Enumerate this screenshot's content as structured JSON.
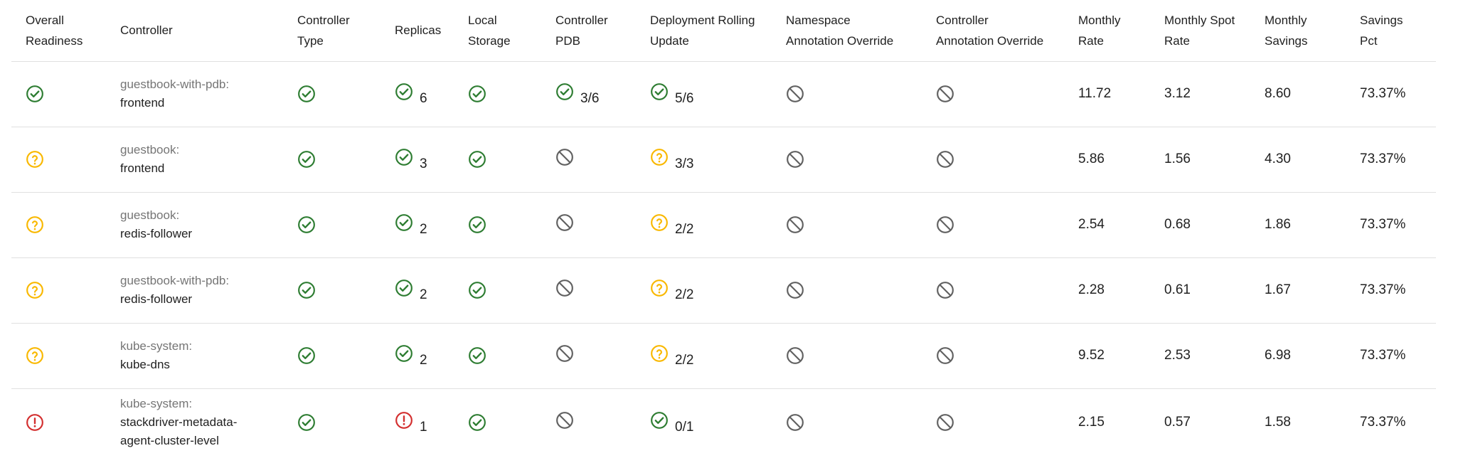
{
  "colors": {
    "ok": "#2e7d32",
    "warn": "#f9b800",
    "error": "#d32f2f",
    "na": "#616161"
  },
  "columns": [
    [
      "Overall",
      "Readiness"
    ],
    [
      "Controller"
    ],
    [
      "Controller",
      "Type"
    ],
    [
      "Replicas"
    ],
    [
      "Local",
      "Storage"
    ],
    [
      "Controller",
      "PDB"
    ],
    [
      "Deployment Rolling",
      "Update"
    ],
    [
      "Namespace",
      "Annotation Override"
    ],
    [
      "Controller",
      "Annotation Override"
    ],
    [
      "Monthly",
      "Rate"
    ],
    [
      "Monthly Spot",
      "Rate"
    ],
    [
      "Monthly",
      "Savings"
    ],
    [
      "Savings",
      "Pct"
    ]
  ],
  "rows": [
    {
      "readiness": "check-circle-icon",
      "namespace": "guestbook-with-pdb:",
      "controller_lines": [
        "frontend"
      ],
      "controller_type": "check-circle-icon",
      "replicas": {
        "icon": "check-circle-icon",
        "value": "6"
      },
      "local_storage": "check-circle-icon",
      "pdb": {
        "icon": "check-circle-icon",
        "value": "3/6"
      },
      "rolling_update": {
        "icon": "check-circle-icon",
        "value": "5/6"
      },
      "namespace_override": "block-icon",
      "controller_override": "block-icon",
      "monthly_rate": "11.72",
      "spot_rate": "3.12",
      "savings": "8.60",
      "savings_pct": "73.37%"
    },
    {
      "readiness": "help-circle-icon",
      "namespace": "guestbook:",
      "controller_lines": [
        "frontend"
      ],
      "controller_type": "check-circle-icon",
      "replicas": {
        "icon": "check-circle-icon",
        "value": "3"
      },
      "local_storage": "check-circle-icon",
      "pdb": {
        "icon": "block-icon",
        "value": ""
      },
      "rolling_update": {
        "icon": "help-circle-icon",
        "value": "3/3"
      },
      "namespace_override": "block-icon",
      "controller_override": "block-icon",
      "monthly_rate": "5.86",
      "spot_rate": "1.56",
      "savings": "4.30",
      "savings_pct": "73.37%"
    },
    {
      "readiness": "help-circle-icon",
      "namespace": "guestbook:",
      "controller_lines": [
        "redis-follower"
      ],
      "controller_type": "check-circle-icon",
      "replicas": {
        "icon": "check-circle-icon",
        "value": "2"
      },
      "local_storage": "check-circle-icon",
      "pdb": {
        "icon": "block-icon",
        "value": ""
      },
      "rolling_update": {
        "icon": "help-circle-icon",
        "value": "2/2"
      },
      "namespace_override": "block-icon",
      "controller_override": "block-icon",
      "monthly_rate": "2.54",
      "spot_rate": "0.68",
      "savings": "1.86",
      "savings_pct": "73.37%"
    },
    {
      "readiness": "help-circle-icon",
      "namespace": "guestbook-with-pdb:",
      "controller_lines": [
        "redis-follower"
      ],
      "controller_type": "check-circle-icon",
      "replicas": {
        "icon": "check-circle-icon",
        "value": "2"
      },
      "local_storage": "check-circle-icon",
      "pdb": {
        "icon": "block-icon",
        "value": ""
      },
      "rolling_update": {
        "icon": "help-circle-icon",
        "value": "2/2"
      },
      "namespace_override": "block-icon",
      "controller_override": "block-icon",
      "monthly_rate": "2.28",
      "spot_rate": "0.61",
      "savings": "1.67",
      "savings_pct": "73.37%"
    },
    {
      "readiness": "help-circle-icon",
      "namespace": "kube-system:",
      "controller_lines": [
        "kube-dns"
      ],
      "controller_type": "check-circle-icon",
      "replicas": {
        "icon": "check-circle-icon",
        "value": "2"
      },
      "local_storage": "check-circle-icon",
      "pdb": {
        "icon": "block-icon",
        "value": ""
      },
      "rolling_update": {
        "icon": "help-circle-icon",
        "value": "2/2"
      },
      "namespace_override": "block-icon",
      "controller_override": "block-icon",
      "monthly_rate": "9.52",
      "spot_rate": "2.53",
      "savings": "6.98",
      "savings_pct": "73.37%"
    },
    {
      "readiness": "error-circle-icon",
      "namespace": "kube-system:",
      "controller_lines": [
        "stackdriver-metadata-",
        "agent-cluster-level"
      ],
      "controller_type": "check-circle-icon",
      "replicas": {
        "icon": "error-circle-icon",
        "value": "1"
      },
      "local_storage": "check-circle-icon",
      "pdb": {
        "icon": "block-icon",
        "value": ""
      },
      "rolling_update": {
        "icon": "check-circle-icon",
        "value": "0/1"
      },
      "namespace_override": "block-icon",
      "controller_override": "block-icon",
      "monthly_rate": "2.15",
      "spot_rate": "0.57",
      "savings": "1.58",
      "savings_pct": "73.37%"
    }
  ]
}
